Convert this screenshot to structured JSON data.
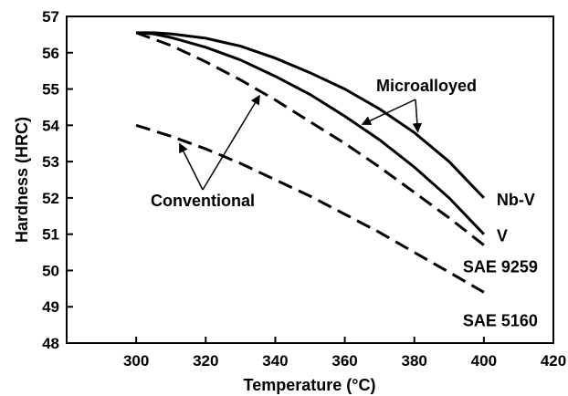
{
  "chart_data": {
    "type": "line",
    "xlabel": "Temperature (°C)",
    "ylabel": "Hardness (HRC)",
    "xlim": [
      280,
      420
    ],
    "ylim": [
      48,
      57
    ],
    "x_ticks": [
      300,
      320,
      340,
      360,
      380,
      400,
      420
    ],
    "y_ticks": [
      48,
      49,
      50,
      51,
      52,
      53,
      54,
      55,
      56,
      57
    ],
    "grid": false,
    "series": [
      {
        "name": "Nb-V",
        "style": "solid",
        "color": "#000000",
        "x": [
          300,
          305,
          310,
          320,
          330,
          340,
          350,
          360,
          370,
          380,
          390,
          400
        ],
        "y": [
          56.55,
          56.55,
          56.52,
          56.4,
          56.18,
          55.85,
          55.45,
          55.0,
          54.45,
          53.8,
          53.0,
          52.0
        ]
      },
      {
        "name": "V",
        "style": "solid",
        "color": "#000000",
        "x": [
          300,
          305,
          310,
          320,
          330,
          340,
          350,
          360,
          370,
          380,
          390,
          400
        ],
        "y": [
          56.55,
          56.52,
          56.42,
          56.15,
          55.8,
          55.35,
          54.85,
          54.25,
          53.6,
          52.85,
          52.0,
          51.0
        ]
      },
      {
        "name": "SAE 9259",
        "style": "dashed",
        "color": "#000000",
        "x": [
          300,
          310,
          320,
          330,
          340,
          350,
          360,
          370,
          380,
          390,
          400
        ],
        "y": [
          56.55,
          56.2,
          55.75,
          55.25,
          54.7,
          54.1,
          53.5,
          52.85,
          52.15,
          51.45,
          50.7
        ]
      },
      {
        "name": "SAE 5160",
        "style": "dashed",
        "color": "#000000",
        "x": [
          300,
          310,
          320,
          330,
          340,
          350,
          360,
          370,
          380,
          390,
          400
        ],
        "y": [
          54.0,
          53.7,
          53.35,
          52.95,
          52.5,
          52.05,
          51.55,
          51.05,
          50.5,
          49.95,
          49.4
        ]
      }
    ],
    "annotations": [
      {
        "text": "Microalloyed",
        "points_to": [
          "V",
          "Nb-V"
        ]
      },
      {
        "text": "Conventional",
        "points_to": [
          "SAE 5160",
          "SAE 9259"
        ]
      }
    ]
  }
}
